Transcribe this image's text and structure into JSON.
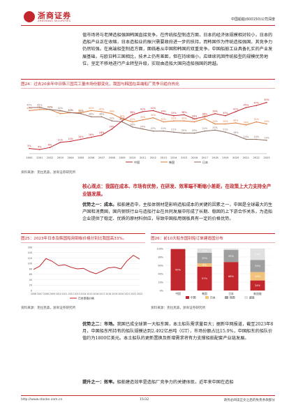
{
  "header": {
    "brand": "浙商证券",
    "brand_en": "ZHESHANG SECURITIES",
    "report_title": "中国船舶(600150)公司深度"
  },
  "intro": "值市场将与老牌造船强国韩国直接竞争。在传统船型制造方面，日本的经济体规模相对较小，日本的造船产业正在收缩，日本造船业的振兴需要政府进一步的扶持，而韩国作为传统造船强国，其竞争力仍然较强。在高端船型制造方面，面临着从中国和韩国的双重竞争。中国船舶工业具备扎实的产业发展基础，与欧日韩三国相比，技术上仍有差距，但在持续缩小，应继续巩固传统船型的规模优势地位，坚定不移地进行产业转型升级，实现由造船大国向造船强国的跨越。",
  "fig24": {
    "caption": "图24：过去20余年中日韩三国完工量市场份额变化，我国与韩国在高端船厂竞争日趋白热化",
    "source": "资料来源：克拉克森，浙商证券研究所"
  },
  "chart_data": [
    {
      "type": "line",
      "x": [
        "2000",
        "2001",
        "2002",
        "2003",
        "2004",
        "2005",
        "2006",
        "2007",
        "2008",
        "2009",
        "2010",
        "2011",
        "2012",
        "2013",
        "2014",
        "2015",
        "2016",
        "2017",
        "2018",
        "2019",
        "2020",
        "2021",
        "2022",
        "2023"
      ],
      "series": [
        {
          "name": "中国",
          "color": "#c1272d",
          "values": [
            5,
            4,
            6,
            11,
            12,
            14,
            16,
            18,
            24,
            32,
            38,
            41,
            42,
            39,
            37,
            38,
            34,
            36,
            39,
            37,
            41,
            45,
            47,
            50
          ]
        },
        {
          "name": "韩国",
          "color": "#e07b39",
          "values": [
            42,
            43,
            43,
            39,
            40,
            40,
            42,
            41,
            39,
            34,
            31,
            33,
            35,
            31,
            32,
            32,
            31,
            34,
            29,
            29,
            30,
            28,
            31,
            29
          ]
        },
        {
          "name": "日本",
          "color": "#8c6d62",
          "values": [
            45,
            45,
            43,
            42,
            40,
            39,
            36,
            36,
            32,
            31,
            26,
            24,
            22,
            22,
            21,
            20,
            20,
            22,
            23,
            21,
            18,
            14,
            14,
            13
          ]
        }
      ],
      "ylim": [
        0,
        60
      ],
      "xlabel": "",
      "ylabel": "",
      "legend": "bottom"
    },
    {
      "type": "line",
      "x": [
        "2006",
        "2007",
        "2008",
        "2009",
        "2010",
        "2011",
        "2012",
        "2013",
        "2014",
        "2015",
        "2016",
        "2017",
        "2018",
        "2019",
        "2020",
        "2021",
        "2022",
        "2023"
      ],
      "series": [
        {
          "name": "日本厚板价格",
          "color": "#c1272d",
          "values": [
            78,
            90,
            118,
            108,
            92,
            95,
            86,
            80,
            82,
            70,
            62,
            72,
            84,
            86,
            80,
            110,
            130,
            116
          ]
        }
      ],
      "ylim": [
        0,
        160
      ],
      "xlabel": "",
      "ylabel": "",
      "legend": "bottom"
    },
    {
      "type": "bar",
      "stacked": true,
      "categories": [
        "中国",
        "韩国",
        "日本",
        "新加坡"
      ],
      "series": [
        {
          "name": "中国",
          "color": "#c1272d",
          "values": [
            99,
            57,
            68,
            24
          ]
        },
        {
          "name": "日本",
          "color": "#f2c27b",
          "values": [
            0,
            8,
            0,
            20
          ]
        },
        {
          "name": "韩国",
          "color": "#9e9e9e",
          "values": [
            0,
            25,
            29,
            29
          ]
        },
        {
          "name": "越南",
          "color": "#e0e0e0",
          "values": [
            1,
            10,
            3,
            27
          ]
        }
      ],
      "ylim": [
        0,
        100
      ],
      "legend": "bottom"
    }
  ],
  "fig24_lasts": {
    "china": [
      "5%",
      "4%",
      "6%",
      "11%",
      "12%",
      "14%",
      "16%",
      "18%",
      "24%",
      "32%",
      "38%",
      "41%",
      "42%",
      "39%",
      "37%",
      "38%",
      "34%",
      "36%",
      "39%",
      "37%",
      "41%",
      "45%",
      "47%",
      "50%"
    ],
    "korea": [
      "42%",
      "43%",
      "43%",
      "39%",
      "40%",
      "40%",
      "42%",
      "41%",
      "39%",
      "34%",
      "31%",
      "33%",
      "35%",
      "31%",
      "32%",
      "32%",
      "31%",
      "34%",
      "29%",
      "29%",
      "30%",
      "28%",
      "31%",
      "29%"
    ],
    "japan": [
      "45%",
      "45%",
      "43%",
      "42%",
      "40%",
      "39%",
      "36%",
      "36%",
      "32%",
      "31%",
      "26%",
      "24%",
      "22%",
      "22%",
      "21%",
      "20%",
      "20%",
      "22%",
      "23%",
      "21%",
      "18%",
      "14%",
      "14%",
      "13%"
    ]
  },
  "core_view": "核心观点：我国在成本、市场有优势，在研发、效率端不断缩小差距，在政策上大力支持全产业链发展。",
  "advantage1": {
    "lead": "优势之一：成本。",
    "text": "船舶建造中，主船体钢材是影响造船成本的关键的因素之一，中国是全球最大的生产国和消费国，国内钢铁行业与造船行业在共同发展中形成了长期、稳固的上下游合作关系，为造船企业提供了稳定、优质的原材料供应，导致中国船用钢板具有一定的价格优势。"
  },
  "fig25": {
    "caption": "图25：2023年日本及韩国船用钢板价格分别比我国高33%。",
    "source": "资料来源：克拉克森，浙商证券研究所",
    "legend": "日本厚板价格",
    "yticks": [
      "160",
      "140",
      "120",
      "100",
      "80",
      "60",
      "40",
      "20",
      "0"
    ]
  },
  "fig26": {
    "caption": "图26：前10大船东国别船订单建造国分布",
    "source": "资料来源：克拉克森，浙商证券研究所",
    "yticks": [
      "100%",
      "80%",
      "60%",
      "40%",
      "20%",
      "0%"
    ],
    "bar_labels": [
      [
        "99%"
      ],
      [
        "57%",
        "8%",
        "25%",
        "10%"
      ],
      [
        "68%",
        "29%",
        "3%"
      ],
      [
        "24%",
        "20%",
        "29%",
        "27%"
      ]
    ],
    "legend": [
      "中国",
      "日本",
      "韩国",
      "越南"
    ]
  },
  "advantage2": {
    "lead": "优势之二：市场。",
    "text": "我国已成全球第一大船东国，本土船队需求量巨大；据新华网报道，截至2023年8月，中国船东所持有的船队规模达到2.492亿总吨（GT），市场份额占比15.9%，中国船东的船队价值约为1800亿美元。本土船队的更新置换及新增需求将有力支撑船舶配套产业链发展。"
  },
  "advantage3": {
    "lead": "提升之一：效率。",
    "text": "船舶建造效率是造船厂竞争力的关键体现，近年来中国在造船"
  },
  "footer": {
    "url": "http://www.stocke.com.cn",
    "page": "15/32",
    "disclaimer": "请务必阅读正文之后的免责条款部分"
  }
}
